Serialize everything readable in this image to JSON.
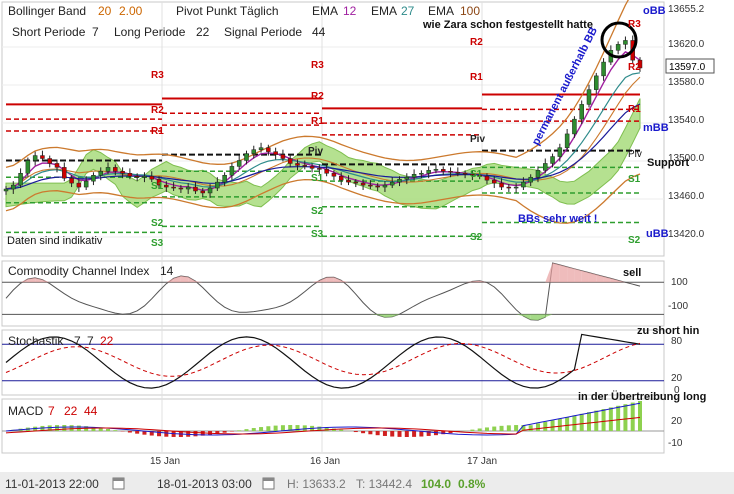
{
  "indicators": {
    "bollinger": {
      "label": "Bollinger Band",
      "p1": "20",
      "p2": "2.00"
    },
    "pivot": "Pivot Punkt Täglich",
    "ema": [
      {
        "label": "EMA",
        "value": "12",
        "color": "#a020a0"
      },
      {
        "label": "EMA",
        "value": "27",
        "color": "#2e8b8b"
      },
      {
        "label": "EMA",
        "value": "100",
        "color": "#8b4513"
      }
    ],
    "short_periode": {
      "label": "Short Periode",
      "value": "7"
    },
    "long_periode": {
      "label": "Long Periode",
      "value": "22"
    },
    "signal_periode": {
      "label": "Signal Periode",
      "value": "44"
    }
  },
  "annotations": {
    "zara": "wie Zara schon festgestellt hatte",
    "permanent": "permanent außerhalb BB",
    "bbs_weit": "BBs sehr weit !",
    "indikativ": "Daten sind indikativ",
    "obb": "oBB",
    "mbb": "mBB",
    "ubb": "uBB",
    "support": "Support",
    "piv": "Piv",
    "cci_sell": "sell",
    "stoch_note": "zu short hin",
    "macd_note": "in der Übertreibung long"
  },
  "pivot_labels": {
    "R1": "R1",
    "R2": "R2",
    "R3": "R3",
    "S1": "S1",
    "S2": "S2",
    "S3": "S3",
    "Piv": "Piv"
  },
  "price_axis": {
    "ticks": [
      "13655.2",
      "13620.0",
      "13580.0",
      "13540.0",
      "13500.0",
      "13460.0",
      "13420.0"
    ],
    "current": "13597.0"
  },
  "cci": {
    "label": "Commodity Channel Index",
    "period": "14",
    "ticks": [
      "100",
      "-100"
    ]
  },
  "stoch": {
    "label": "Stochastik",
    "p1": "7",
    "p2": "7",
    "p3": "22",
    "ticks": [
      "80",
      "20",
      "0"
    ]
  },
  "macd": {
    "label": "MACD",
    "p1": "7",
    "p2": "22",
    "p3": "44",
    "ticks": [
      "20",
      "-10"
    ]
  },
  "time_axis": {
    "labels": [
      "15 Jan",
      "16 Jan",
      "17 Jan"
    ]
  },
  "footer": {
    "start": "11-01-2013 22:00",
    "end": "18-01-2013 03:00",
    "high": "H: 13633.2",
    "low": "T: 13442.4",
    "change": "104.0",
    "pct": "0.8%"
  },
  "colors": {
    "up": "#2e8b2e",
    "down": "#cc0000",
    "pivot_r": "#cc0000",
    "pivot_s": "#2e9e2e",
    "blue_note": "#1a1acc"
  },
  "chart_data": {
    "type": "candlestick",
    "close": [
      13474,
      13478,
      13490,
      13503,
      13508,
      13505,
      13500,
      13496,
      13485,
      13480,
      13476,
      13482,
      13488,
      13492,
      13496,
      13492,
      13490,
      13487,
      13486,
      13487,
      13484,
      13478,
      13476,
      13475,
      13474,
      13476,
      13472,
      13470,
      13475,
      13481,
      13488,
      13497,
      13503,
      13510,
      13514,
      13516,
      13512,
      13509,
      13505,
      13500,
      13498,
      13497,
      13495,
      13494,
      13490,
      13487,
      13483,
      13481,
      13480,
      13478,
      13477,
      13476,
      13478,
      13481,
      13484,
      13486,
      13489,
      13490,
      13493,
      13494,
      13492,
      13491,
      13490,
      13489,
      13488,
      13487,
      13483,
      13480,
      13476,
      13475,
      13476,
      13481,
      13486,
      13493,
      13500,
      13507,
      13516,
      13530,
      13545,
      13560,
      13575,
      13589,
      13603,
      13615,
      13621,
      13625,
      13605,
      13597
    ],
    "ylim": [
      13410,
      13660
    ],
    "bollinger": {
      "upper_last": 13640,
      "mid_last": 13545,
      "lower_last": 13420
    },
    "pivots": {
      "R3": 13560,
      "R2": 13545,
      "R1": 13533,
      "Piv": 13503,
      "S1": 13486,
      "S2": 13460,
      "S3": 13430
    },
    "cci_ylim": [
      -160,
      220
    ],
    "stoch_ylim": [
      0,
      100
    ],
    "macd_ylim": [
      -20,
      30
    ]
  }
}
